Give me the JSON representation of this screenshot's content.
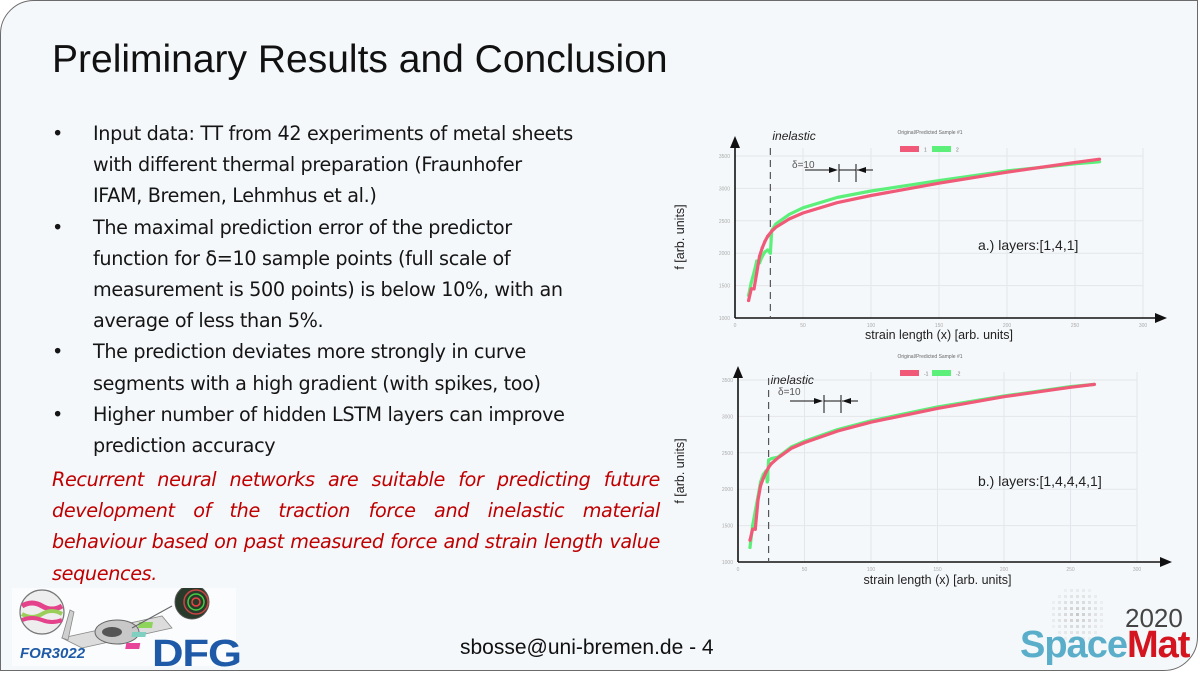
{
  "slide": {
    "title": "Preliminary Results and Conclusion",
    "bullet_marker": "•",
    "bullets": [
      {
        "lines": [
          "Input data: TT from 42 experiments of metal sheets",
          "with different thermal preparation (Fraunhofer",
          "IFAM, Bremen, Lehmhus et al.)"
        ]
      },
      {
        "lines": [
          "The maximal prediction error of the predictor",
          "function for δ=10 sample points (full scale of",
          "measurement is 500 points) is below 10%, with an",
          "average of less than 5%."
        ]
      },
      {
        "lines": [
          "The prediction deviates more strongly in curve",
          "segments with a high gradient (with spikes, too)"
        ]
      },
      {
        "lines": [
          "Higher number of hidden LSTM layers can improve",
          "prediction accuracy"
        ]
      }
    ],
    "conclusion": "Recurrent neural networks are suitable for predicting future development of the traction force and inelastic material behaviour based on past measured force and strain length value sequences.",
    "footer": "sbosse@uni-bremen.de - 4",
    "colors": {
      "title": "#111111",
      "text": "#151515",
      "conclusion": "#c00000",
      "original": "#f05a78",
      "predicted": "#5cf07a",
      "background": "#f5f8fb"
    }
  },
  "logos": {
    "left_label": "FOR3022",
    "dfg": "DFG",
    "right_year": "2020",
    "right_space": "Space",
    "right_mat": "Mat"
  },
  "chart_data": [
    {
      "type": "line",
      "title": "Original/Predicted Sample #1",
      "annotation": "a.) layers:[1,4,1]",
      "region_label": "inelastic",
      "delta_label": "δ=10",
      "xlabel": "strain length (x) [arb. units]",
      "ylabel": "f [arb. units]",
      "xlim": [
        0,
        300
      ],
      "ylim": [
        1000,
        3500
      ],
      "xticks": [
        "0",
        "50",
        "100",
        "150",
        "200",
        "250",
        "300"
      ],
      "yticks": [
        "1000",
        "1500",
        "2000",
        "2500",
        "3000",
        "3500"
      ],
      "legend": [
        "1",
        "2"
      ],
      "grid": true,
      "inelastic_x": 26,
      "series": [
        {
          "name": "1",
          "color": "#f05a78",
          "x": [
            10,
            12,
            14,
            16,
            18,
            20,
            22,
            24,
            27,
            30,
            40,
            50,
            75,
            100,
            150,
            200,
            250,
            268
          ],
          "y": [
            1270,
            1450,
            1450,
            1700,
            1950,
            2080,
            2180,
            2260,
            2340,
            2400,
            2530,
            2620,
            2780,
            2890,
            3080,
            3250,
            3400,
            3450
          ]
        },
        {
          "name": "2",
          "color": "#5cf07a",
          "x": [
            10,
            12,
            14,
            16,
            18,
            20,
            22,
            24,
            26,
            27,
            30,
            40,
            50,
            75,
            100,
            150,
            200,
            250,
            268
          ],
          "y": [
            1350,
            1550,
            1700,
            1880,
            1850,
            1950,
            2020,
            2050,
            2000,
            2350,
            2450,
            2600,
            2700,
            2860,
            2960,
            3120,
            3270,
            3380,
            3410
          ]
        }
      ]
    },
    {
      "type": "line",
      "title": "Original/Predicted Sample #1",
      "annotation": "b.) layers:[1,4,4,4,1]",
      "region_label": "inelastic",
      "delta_label": "δ=10",
      "xlabel": "strain length (x) [arb. units]",
      "ylabel": "f [arb. units]",
      "xlim": [
        0,
        300
      ],
      "ylim": [
        1000,
        3500
      ],
      "xticks": [
        "0",
        "50",
        "100",
        "150",
        "200",
        "250",
        "300"
      ],
      "yticks": [
        "1000",
        "1500",
        "2000",
        "2500",
        "3000",
        "3500"
      ],
      "legend": [
        "-1",
        "-2"
      ],
      "grid": true,
      "inelastic_x": 23,
      "series": [
        {
          "name": "-1",
          "color": "#f05a78",
          "x": [
            9,
            11,
            13,
            15,
            17,
            19,
            21,
            23,
            25,
            30,
            40,
            50,
            75,
            100,
            150,
            200,
            250,
            268
          ],
          "y": [
            1300,
            1450,
            1450,
            1850,
            2050,
            2150,
            2230,
            2300,
            2350,
            2430,
            2560,
            2640,
            2800,
            2920,
            3110,
            3270,
            3400,
            3440
          ]
        },
        {
          "name": "-2",
          "color": "#5cf07a",
          "x": [
            9,
            11,
            13,
            15,
            17,
            19,
            21,
            22,
            23,
            25,
            30,
            40,
            50,
            75,
            100,
            150,
            200,
            250,
            268
          ],
          "y": [
            1200,
            1500,
            1700,
            1900,
            2100,
            2200,
            2250,
            2100,
            2400,
            2420,
            2440,
            2580,
            2660,
            2820,
            2940,
            3130,
            3280,
            3410,
            3440
          ]
        }
      ]
    }
  ]
}
